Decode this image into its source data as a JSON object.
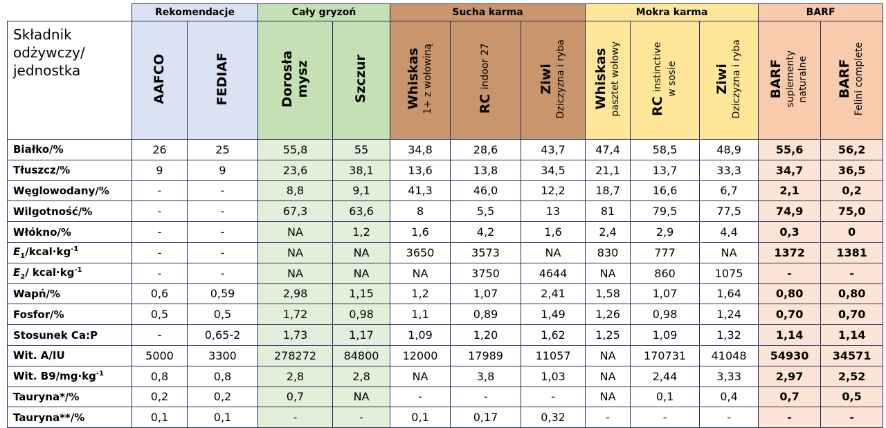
{
  "table": {
    "corner": "Składnik odżywczy/ jednostka",
    "groups": [
      {
        "title": "Rekomendacje",
        "columns": 2
      },
      {
        "title": "Cały gryzoń",
        "columns": 2
      },
      {
        "title": "Sucha karma",
        "columns": 3
      },
      {
        "title": "Mokra karma",
        "columns": 3
      },
      {
        "title": "BARF",
        "columns": 2
      }
    ],
    "columns": [
      {
        "lines": [
          [
            {
              "text": "AAFCO",
              "bold": true
            }
          ]
        ]
      },
      {
        "lines": [
          [
            {
              "text": "FEDIAF",
              "bold": true
            }
          ]
        ]
      },
      {
        "lines": [
          [
            {
              "text": "Dorosła",
              "bold": true
            }
          ],
          [
            {
              "text": "mysz",
              "bold": true
            }
          ]
        ]
      },
      {
        "lines": [
          [
            {
              "text": "Szczur",
              "bold": true
            }
          ]
        ]
      },
      {
        "lines": [
          [
            {
              "text": "Whiskas",
              "bold": true
            }
          ],
          [
            {
              "text": "1+ z wołowiną",
              "bold": false
            }
          ]
        ]
      },
      {
        "lines": [
          [
            {
              "text": "RC",
              "bold": true
            },
            {
              "text": "indoor 27",
              "bold": false
            }
          ]
        ]
      },
      {
        "lines": [
          [
            {
              "text": "Ziwi",
              "bold": true
            }
          ],
          [
            {
              "text": "Dziczyzna i ryba",
              "bold": false
            }
          ]
        ]
      },
      {
        "lines": [
          [
            {
              "text": "Whiskas",
              "bold": true
            }
          ],
          [
            {
              "text": "pasztet wołowy",
              "bold": false
            }
          ]
        ]
      },
      {
        "lines": [
          [
            {
              "text": "RC",
              "bold": true
            },
            {
              "text": "instinctive",
              "bold": false
            }
          ],
          [
            {
              "text": "w sosie",
              "bold": false
            }
          ]
        ]
      },
      {
        "lines": [
          [
            {
              "text": "Ziwi",
              "bold": true
            }
          ],
          [
            {
              "text": "Dziczyzna i ryba",
              "bold": false
            }
          ]
        ]
      },
      {
        "lines": [
          [
            {
              "text": "BARF",
              "bold": true
            }
          ],
          [
            {
              "text": "suplementy",
              "bold": false
            }
          ],
          [
            {
              "text": "naturalne",
              "bold": false
            }
          ]
        ]
      },
      {
        "lines": [
          [
            {
              "text": "BARF",
              "bold": true
            }
          ],
          [
            {
              "text": "Felini complete",
              "bold": false
            }
          ]
        ]
      }
    ],
    "rows": [
      {
        "label": [
          "Białko/%"
        ],
        "values": [
          "26",
          "25",
          "55,8",
          "55",
          "34,8",
          "28,6",
          "43,7",
          "47,4",
          "58,5",
          "48,9",
          "55,6",
          "56,2"
        ]
      },
      {
        "label": [
          "Tłuszcz/%"
        ],
        "values": [
          "9",
          "9",
          "23,6",
          "38,1",
          "13,6",
          "13,8",
          "34,5",
          "21,1",
          "13,7",
          "33,3",
          "34,7",
          "36,5"
        ]
      },
      {
        "label": [
          "Węglowodany/%"
        ],
        "values": [
          "-",
          "-",
          "8,8",
          "9,1",
          "41,3",
          "46,0",
          "12,2",
          "18,7",
          "16,6",
          "6,7",
          "2,1",
          "0,2"
        ]
      },
      {
        "label": [
          "Wilgotność/%"
        ],
        "values": [
          "-",
          "-",
          "67,3",
          "63,6",
          "8",
          "5,5",
          "13",
          "81",
          "79,5",
          "77,5",
          "74,9",
          "75,0"
        ]
      },
      {
        "label": [
          "Włókno/%"
        ],
        "values": [
          "-",
          "-",
          "NA",
          "1,2",
          "1,6",
          "4,2",
          "1,6",
          "2,4",
          "2,9",
          "4,4",
          "0,3",
          "0"
        ]
      },
      {
        "label": [
          "E",
          "1",
          "/kcal·kg",
          "-1"
        ],
        "values": [
          "-",
          "-",
          "NA",
          "NA",
          "3650",
          "3573",
          "NA",
          "830",
          "777",
          "NA",
          "1372",
          "1381"
        ]
      },
      {
        "label": [
          "E",
          "2",
          "/ kcal·kg",
          "-1"
        ],
        "values": [
          "-",
          "-",
          "NA",
          "NA",
          "NA",
          "3750",
          "4644",
          "NA",
          "860",
          "1075",
          "-",
          "-"
        ]
      },
      {
        "label": [
          "Wapń/%"
        ],
        "values": [
          "0,6",
          "0,59",
          "2,98",
          "1,15",
          "1,2",
          "1,07",
          "2,41",
          "1,58",
          "1,07",
          "1,64",
          "0,80",
          "0,80"
        ]
      },
      {
        "label": [
          "Fosfor/%"
        ],
        "values": [
          "0,5",
          "0,5",
          "1,72",
          "0,98",
          "1,1",
          "0,89",
          "1,49",
          "1,26",
          "0,98",
          "1,24",
          "0,70",
          "0,70"
        ]
      },
      {
        "label": [
          "Stosunek Ca:P"
        ],
        "values": [
          "-",
          "0,65-2",
          "1,73",
          "1,17",
          "1,09",
          "1,20",
          "1,62",
          "1,25",
          "1,09",
          "1,32",
          "1,14",
          "1,14"
        ]
      },
      {
        "label": [
          "Wit. A/IU"
        ],
        "values": [
          "5000",
          "3300",
          "278272",
          "84800",
          "12000",
          "17989",
          "11057",
          "NA",
          "170731",
          "41048",
          "54930",
          "34571"
        ]
      },
      {
        "label": [
          "Wit. B9/mg·kg",
          "-1"
        ],
        "values": [
          "0,8",
          "0,8",
          "2,8",
          "2,8",
          "NA",
          "3,8",
          "1,03",
          "NA",
          "2,44",
          "3,33",
          "2,97",
          "2,52"
        ]
      },
      {
        "label": [
          "Tauryna*/%"
        ],
        "values": [
          "0,2",
          "0,2",
          "0,7",
          "NA",
          "-",
          "-",
          "-",
          "NA",
          "0,1",
          "0,4",
          "0,7",
          "0,5"
        ]
      },
      {
        "label": [
          "Tauryna**/%"
        ],
        "values": [
          "0,1",
          "0,1",
          "-",
          "-",
          "0,1",
          "0,17",
          "0,32",
          "-",
          "-",
          "-",
          "-",
          "-"
        ]
      }
    ]
  }
}
